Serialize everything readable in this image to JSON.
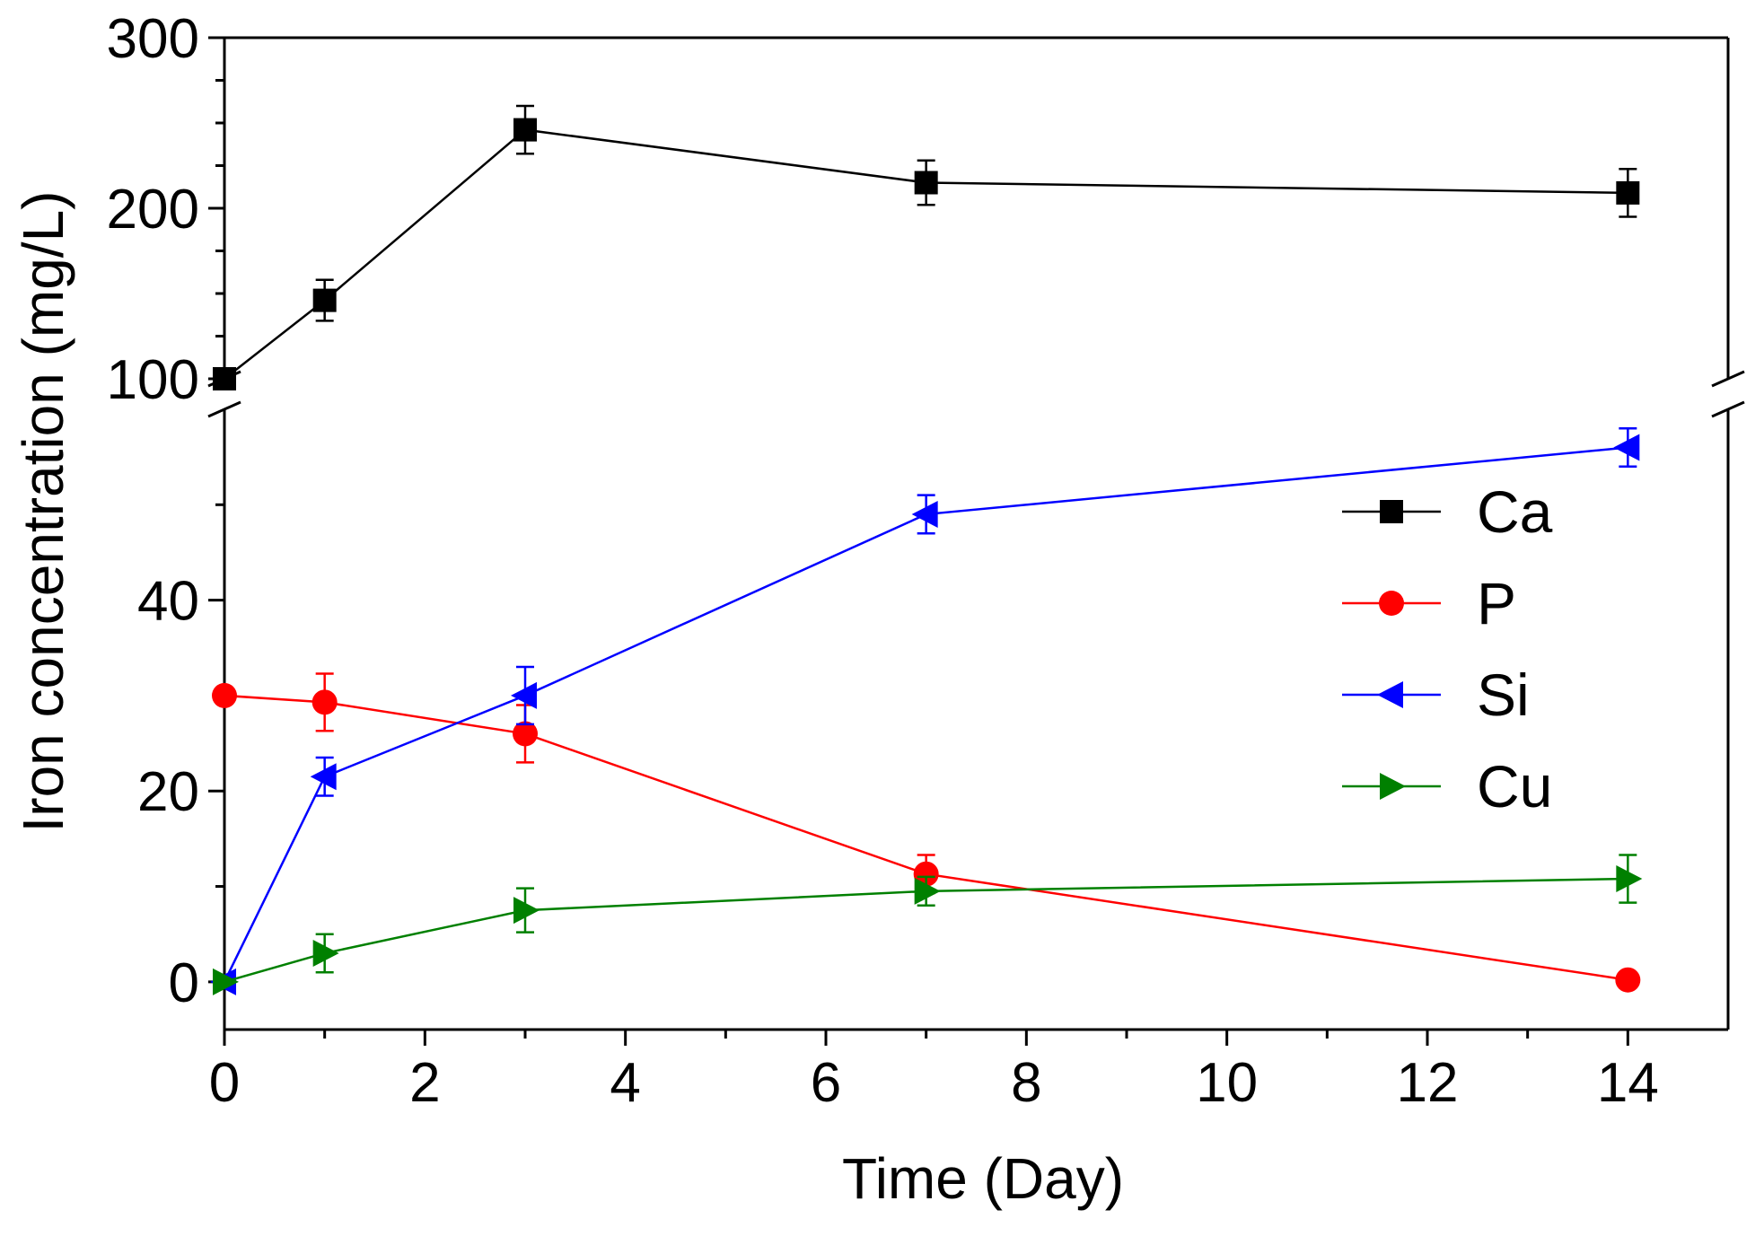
{
  "chart_data": {
    "type": "line",
    "title": "",
    "xlabel": "Time (Day)",
    "ylabel": "Iron concentration (mg/L)",
    "xlim": [
      0,
      15
    ],
    "x_ticks": [
      0,
      2,
      4,
      6,
      8,
      10,
      12,
      14
    ],
    "x_tick_labels": [
      "0",
      "2",
      "4",
      "6",
      "8",
      "10",
      "12",
      "14"
    ],
    "y_break": {
      "lower_range": [
        -5,
        60
      ],
      "upper_range": [
        100,
        300
      ]
    },
    "y_ticks_lower": [
      0,
      20,
      40
    ],
    "y_tick_labels_lower": [
      "0",
      "20",
      "40"
    ],
    "y_ticks_upper": [
      100,
      200,
      300
    ],
    "y_tick_labels_upper": [
      "100",
      "200",
      "300"
    ],
    "legend_position": "center-right",
    "x": [
      0,
      1,
      3,
      7,
      14
    ],
    "series": [
      {
        "name": "Ca",
        "color": "#000000",
        "marker": "square",
        "values": [
          100,
          146,
          246,
          215,
          209
        ],
        "errors": [
          0,
          12,
          14,
          13,
          14
        ]
      },
      {
        "name": "P",
        "color": "#ff0000",
        "marker": "circle",
        "values": [
          30,
          29.3,
          26,
          11.3,
          0.2
        ],
        "errors": [
          0,
          3,
          3,
          2,
          0
        ]
      },
      {
        "name": "Si",
        "color": "#0000ff",
        "marker": "triangle-left",
        "values": [
          0,
          21.5,
          30,
          49,
          56
        ],
        "errors": [
          0,
          2,
          3,
          2,
          2
        ]
      },
      {
        "name": "Cu",
        "color": "#008000",
        "marker": "triangle-right",
        "values": [
          0,
          3,
          7.5,
          9.5,
          10.8
        ],
        "errors": [
          0,
          2,
          2.3,
          1.5,
          2.5
        ]
      }
    ]
  }
}
